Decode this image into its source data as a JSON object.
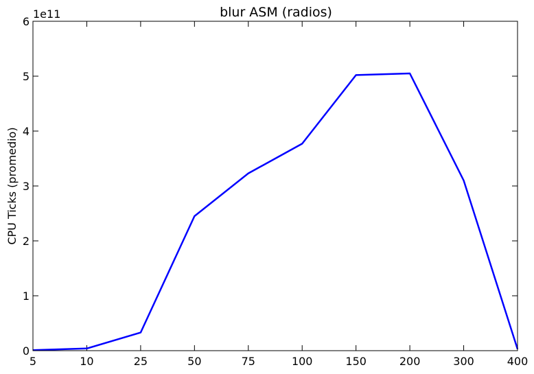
{
  "chart_data": {
    "type": "line",
    "title": "blur ASM (radios)",
    "xlabel": "",
    "ylabel": "CPU Ticks (promedio)",
    "y_offset_label": "1e11",
    "categories": [
      "5",
      "10",
      "25",
      "50",
      "75",
      "100",
      "150",
      "200",
      "300",
      "400"
    ],
    "series": [
      {
        "values": [
          1000000000,
          4000000000,
          33000000000,
          245000000000,
          323000000000,
          377000000000,
          502000000000,
          505000000000,
          310000000000,
          3000000000
        ],
        "color": "#0000ff"
      }
    ],
    "ylim": [
      0,
      600000000000
    ],
    "y_ticks": [
      0,
      100000000000,
      200000000000,
      300000000000,
      400000000000,
      500000000000,
      600000000000
    ],
    "y_tick_labels": [
      "0",
      "1",
      "2",
      "3",
      "4",
      "5",
      "6"
    ],
    "grid": false
  }
}
